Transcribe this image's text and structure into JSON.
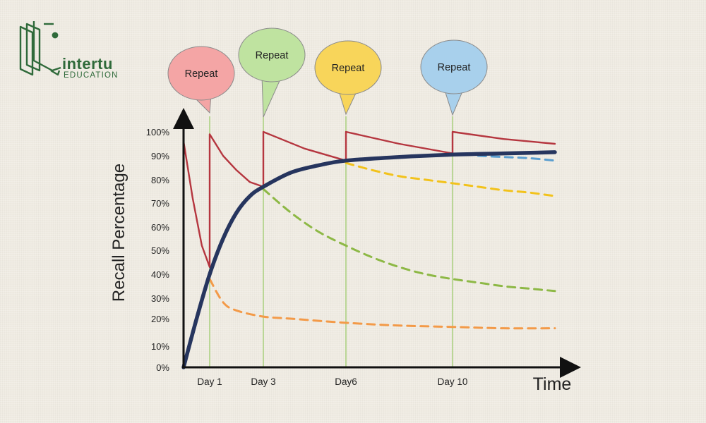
{
  "brand": {
    "word": "intertu",
    "sub": "EDUCATION",
    "color": "#2f6a3a",
    "icon": "book-icon"
  },
  "chart_data": {
    "type": "line",
    "xlabel": "Time",
    "ylabel": "Recall Percentage",
    "yticks": [
      "100%",
      "90%",
      "80%",
      "70%",
      "60%",
      "50%",
      "40%",
      "30%",
      "20%",
      "10%",
      "0%"
    ],
    "ytick_values": [
      100,
      90,
      80,
      70,
      60,
      50,
      40,
      30,
      20,
      10,
      0
    ],
    "xticks": [
      {
        "label": "Day 1",
        "x": 1
      },
      {
        "label": "Day 3",
        "x": 3
      },
      {
        "label": "Day6",
        "x": 6
      },
      {
        "label": "Day 10",
        "x": 10
      }
    ],
    "xlim": [
      0,
      14
    ],
    "ylim": [
      0,
      100
    ],
    "repeats": [
      {
        "label": "Repeat",
        "x": 1,
        "color": "#f4a5a5"
      },
      {
        "label": "Repeat",
        "x": 3,
        "color": "#bfe3a0"
      },
      {
        "label": "Repeat",
        "x": 6,
        "color": "#f8d55a"
      },
      {
        "label": "Repeat",
        "x": 10,
        "color": "#a8d0ec"
      }
    ],
    "series": [
      {
        "style": "solid",
        "color": "#b5363f",
        "points": [
          [
            0,
            96
          ],
          [
            0.35,
            72
          ],
          [
            0.7,
            52
          ],
          [
            1,
            43
          ],
          [
            1,
            99
          ],
          [
            1.5,
            90
          ],
          [
            2,
            84
          ],
          [
            2.5,
            79
          ],
          [
            3,
            77
          ],
          [
            3,
            100
          ],
          [
            4.5,
            93
          ],
          [
            6,
            88
          ],
          [
            6,
            100
          ],
          [
            8,
            95
          ],
          [
            10,
            91
          ],
          [
            10,
            100
          ],
          [
            12,
            97
          ],
          [
            14,
            95
          ]
        ]
      },
      {
        "style": "solid",
        "color": "#26355e",
        "points": [
          [
            0,
            0
          ],
          [
            0.5,
            20
          ],
          [
            1,
            40
          ],
          [
            1.5,
            55
          ],
          [
            2,
            66
          ],
          [
            2.5,
            73
          ],
          [
            3,
            77
          ],
          [
            4,
            83
          ],
          [
            5,
            86
          ],
          [
            6,
            88
          ],
          [
            8,
            89.5
          ],
          [
            10,
            90.5
          ],
          [
            12,
            91
          ],
          [
            14,
            91.5
          ]
        ]
      },
      {
        "style": "dashed",
        "color": "#f39a48",
        "points": [
          [
            1,
            38
          ],
          [
            1.5,
            28
          ],
          [
            2,
            24
          ],
          [
            3,
            21
          ],
          [
            4,
            20
          ],
          [
            6,
            18.5
          ],
          [
            8,
            17.5
          ],
          [
            10,
            17
          ],
          [
            12,
            16.5
          ],
          [
            14,
            16.5
          ]
        ]
      },
      {
        "style": "dashed",
        "color": "#8db845",
        "points": [
          [
            3,
            76
          ],
          [
            4,
            66
          ],
          [
            5,
            58
          ],
          [
            6,
            52
          ],
          [
            7,
            47
          ],
          [
            8,
            43
          ],
          [
            9,
            40
          ],
          [
            10,
            38
          ],
          [
            11,
            36.5
          ],
          [
            12,
            35
          ],
          [
            13,
            34
          ],
          [
            14,
            33
          ]
        ]
      },
      {
        "style": "dashed",
        "color": "#f2c21b",
        "points": [
          [
            6,
            87
          ],
          [
            7,
            84
          ],
          [
            8,
            81.5
          ],
          [
            9,
            80
          ],
          [
            10,
            78.5
          ],
          [
            11,
            77
          ],
          [
            12,
            75.5
          ],
          [
            13,
            74.5
          ],
          [
            14,
            73
          ]
        ]
      },
      {
        "style": "dashed",
        "color": "#5a9ed0",
        "points": [
          [
            11,
            90
          ],
          [
            12,
            89.5
          ],
          [
            13,
            89
          ],
          [
            14,
            88
          ]
        ]
      }
    ]
  }
}
